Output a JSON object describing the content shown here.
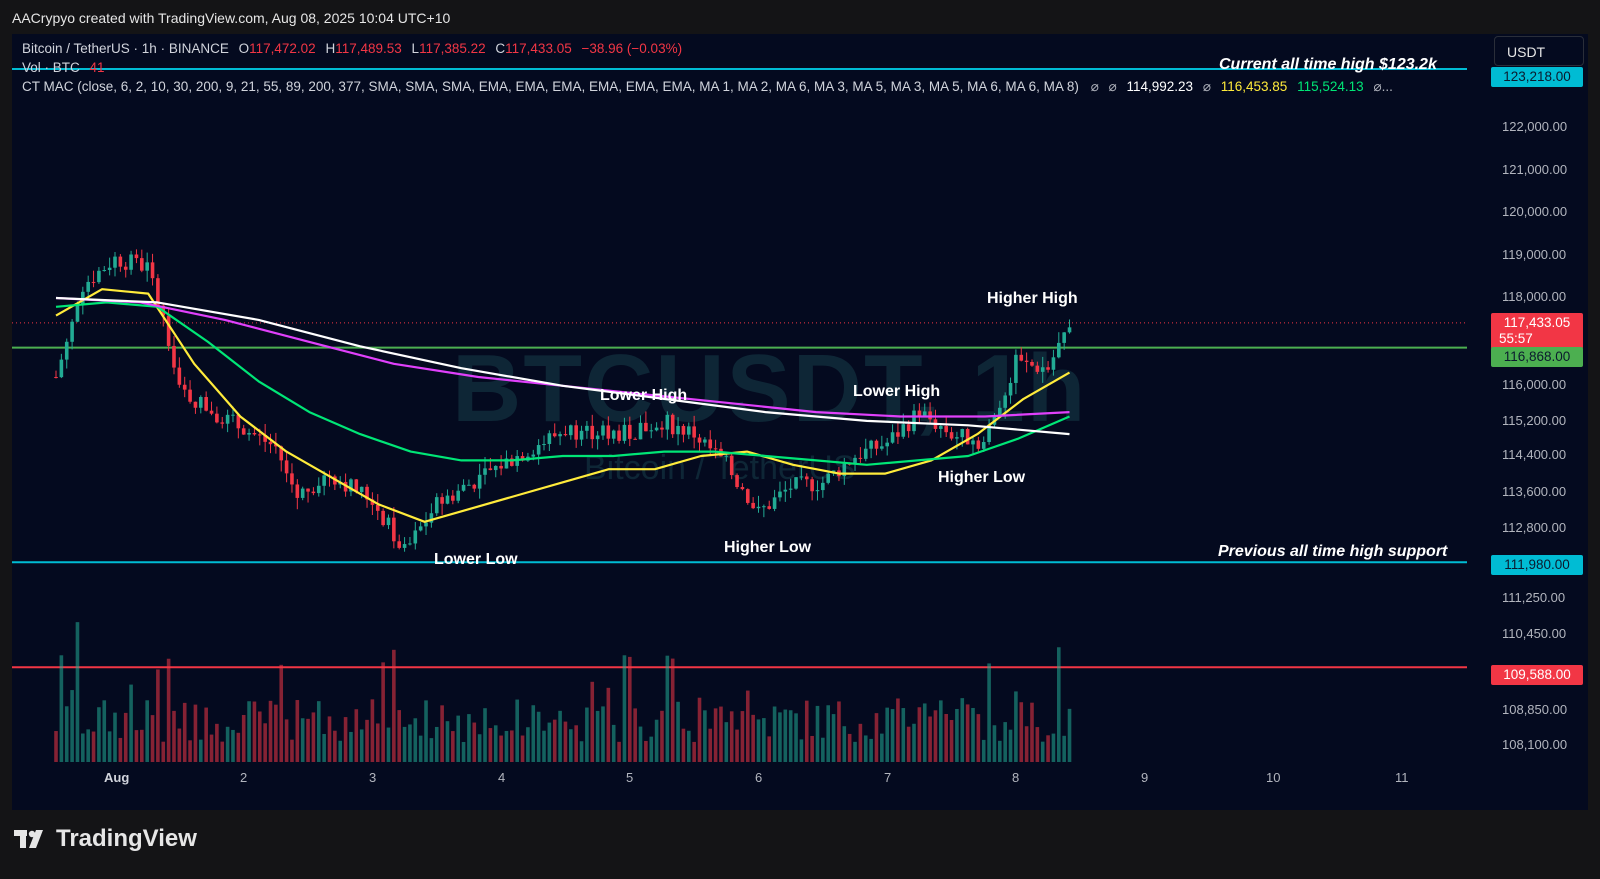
{
  "header": {
    "caption": "AACrypyo created with TradingView.com, Aug 08, 2025 10:04 UTC+10"
  },
  "legend": {
    "symbol": "Bitcoin / TetherUS · 1h · BINANCE",
    "o_label": "O",
    "o_value": "117,472.02",
    "h_label": "H",
    "h_value": "117,489.53",
    "l_label": "L",
    "l_value": "117,385.22",
    "c_label": "C",
    "c_value": "117,433.05",
    "change": "−38.96 (−0.03%)",
    "vol_label": "Vol · BTC",
    "vol_value": "41",
    "indicator": "CT MAC (close, 6, 2, 10, 30, 200, 9, 21, 55, 89, 200, 377, SMA, SMA, SMA, EMA, EMA, EMA, EMA, EMA, EMA, MA 1, MA 2, MA 6, MA 3, MA 5, MA 3, MA 5, MA 6, MA 6, MA 8)",
    "ind_sym1": "⌀",
    "ind_sym2": "⌀",
    "ind_val1": "114,992.23",
    "ind_sym3": "⌀",
    "ind_val2": "116,453.85",
    "ind_val3": "115,524.13",
    "ind_sym4": "⌀..."
  },
  "currency_button": "USDT",
  "price_tags": {
    "ath": "123,218.00",
    "last_price": "117,433.05",
    "countdown": "55:57",
    "green_level": "116,868.00",
    "support": "111,980.00",
    "red_level": "109,588.00"
  },
  "annotations": {
    "ath_note": "Current all time high $123.2k",
    "support_note": "Previous all time high support",
    "lower_low": "Lower Low",
    "lower_high_1": "Lower High",
    "higher_low_1": "Higher Low",
    "lower_high_2": "Lower High",
    "higher_low_2": "Higher Low",
    "higher_high": "Higher High"
  },
  "watermark": {
    "ticker": "BTCUSDT, 1h",
    "name": "Bitcoin / TetherUS"
  },
  "footer": {
    "brand": "TradingView"
  },
  "colors": {
    "background": "#040a1f",
    "up": "#22ab94",
    "down": "#f23645",
    "ema_yellow": "#ffeb3b",
    "ema_green": "#00e676",
    "ma_magenta": "#e040fb",
    "ma_white": "#ffffff",
    "ath_line": "#00bcd4",
    "support_line": "#00bcd4",
    "green_line": "#4caf50",
    "red_line": "#f23645"
  },
  "chart_data": {
    "type": "candlestick",
    "timeframe": "1h",
    "x_axis_ticks": [
      "Aug",
      "2",
      "3",
      "4",
      "5",
      "6",
      "7",
      "8",
      "9",
      "10",
      "11"
    ],
    "y_axis_ticks": [
      "122,000.00",
      "121,000.00",
      "120,000.00",
      "119,000.00",
      "118,000.00",
      "116,000.00",
      "115,200.00",
      "114,400.00",
      "113,600.00",
      "112,800.00",
      "111,250.00",
      "110,450.00",
      "108,850.00",
      "108,100.00"
    ],
    "ylim": [
      107500,
      124000
    ],
    "horizontal_levels": [
      {
        "price": 123218,
        "label": "123,218.00"
      },
      {
        "price": 116868,
        "label": "116,868.00"
      },
      {
        "price": 111980,
        "label": "111,980.00"
      },
      {
        "price": 109588,
        "label": "109,588.00"
      }
    ],
    "close_path": [
      {
        "date": "Jul 31 13:00",
        "close": 116200
      },
      {
        "date": "Jul 31 18:00",
        "close": 118300
      },
      {
        "date": "Aug 1 00:00",
        "close": 118900
      },
      {
        "date": "Aug 1 06:00",
        "close": 118700
      },
      {
        "date": "Aug 1 09:00",
        "close": 117500
      },
      {
        "date": "Aug 1 12:00",
        "close": 115900
      },
      {
        "date": "Aug 1 20:00",
        "close": 115300
      },
      {
        "date": "Aug 2 06:00",
        "close": 114600
      },
      {
        "date": "Aug 2 10:00",
        "close": 113500
      },
      {
        "date": "Aug 2 16:00",
        "close": 114000
      },
      {
        "date": "Aug 3 00:00",
        "close": 113400
      },
      {
        "date": "Aug 3 06:00",
        "close": 112200
      },
      {
        "date": "Aug 3 12:00",
        "close": 113300
      },
      {
        "date": "Aug 4 00:00",
        "close": 114200
      },
      {
        "date": "Aug 4 12:00",
        "close": 115000
      },
      {
        "date": "Aug 5 00:00",
        "close": 114900
      },
      {
        "date": "Aug 5 06:00",
        "close": 115200
      },
      {
        "date": "Aug 5 12:00",
        "close": 114900
      },
      {
        "date": "Aug 5 18:00",
        "close": 114200
      },
      {
        "date": "Aug 6 00:00",
        "close": 113100
      },
      {
        "date": "Aug 6 06:00",
        "close": 113700
      },
      {
        "date": "Aug 6 12:00",
        "close": 113800
      },
      {
        "date": "Aug 6 18:00",
        "close": 114400
      },
      {
        "date": "Aug 7 00:00",
        "close": 114700
      },
      {
        "date": "Aug 7 06:00",
        "close": 115400
      },
      {
        "date": "Aug 7 12:00",
        "close": 114900
      },
      {
        "date": "Aug 7 18:00",
        "close": 114700
      },
      {
        "date": "Aug 8 00:00",
        "close": 116500
      },
      {
        "date": "Aug 8 06:00",
        "close": 116400
      },
      {
        "date": "Aug 8 10:00",
        "close": 117433
      }
    ],
    "moving_averages": [
      {
        "name": "EMA yellow",
        "color": "#ffeb3b",
        "values": [
          117600,
          118200,
          118100,
          116500,
          115300,
          114500,
          113900,
          113300,
          112900,
          113200,
          113500,
          113800,
          114100,
          114100,
          114400,
          114500,
          114200,
          114000,
          114000,
          114300,
          114900,
          115700,
          116300
        ]
      },
      {
        "name": "EMA green",
        "color": "#00e676",
        "values": [
          117800,
          117900,
          117800,
          117000,
          116100,
          115400,
          114900,
          114500,
          114300,
          114300,
          114400,
          114400,
          114500,
          114500,
          114400,
          114300,
          114200,
          114300,
          114400,
          114800,
          115300
        ]
      },
      {
        "name": "MA magenta",
        "color": "#e040fb",
        "values": [
          118000,
          117900,
          117500,
          117000,
          116500,
          116200,
          116000,
          115800,
          115600,
          115400,
          115300,
          115300,
          115400
        ]
      },
      {
        "name": "MA white",
        "color": "#ffffff",
        "values": [
          118000,
          117900,
          117500,
          116900,
          116400,
          116000,
          115700,
          115400,
          115200,
          115100,
          114900
        ]
      }
    ],
    "volume": {
      "unit": "BTC",
      "last": 41
    }
  }
}
